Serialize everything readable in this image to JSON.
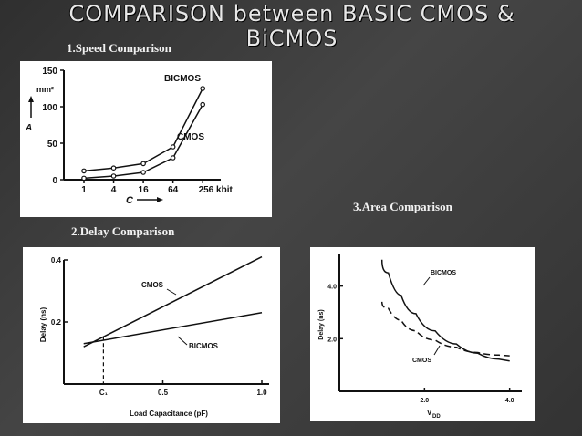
{
  "slide": {
    "title": "COMPARISON between BASIC CMOS & BiCMOS",
    "captions": {
      "speed": "1.Speed Comparison",
      "delay": "2.Delay Comparison",
      "area": "3.Area Comparison"
    }
  },
  "chart_data": [
    {
      "type": "line",
      "name": "speed",
      "ylabel": "mm² A",
      "xlabel": "C",
      "x_tick_labels": [
        "1",
        "4",
        "16",
        "64",
        "256 kbit"
      ],
      "y_ticks": [
        0,
        50,
        100,
        150
      ],
      "y_tick_labels": [
        "0",
        "50",
        "100",
        "150"
      ],
      "unit_label": "mm²",
      "ylim": [
        0,
        150
      ],
      "series": [
        {
          "name": "BICMOS",
          "values": [
            12,
            16,
            22,
            45,
            125
          ]
        },
        {
          "name": "CMOS",
          "values": [
            2,
            5,
            10,
            30,
            103
          ]
        }
      ]
    },
    {
      "type": "line",
      "name": "delay",
      "xlabel": "Load Capacitance (pF)",
      "ylabel": "Delay (ns)",
      "x_ticks": [
        0.5,
        1.0
      ],
      "x_tick_labels": [
        "0.5",
        "1.0"
      ],
      "y_ticks": [
        0.2,
        0.4
      ],
      "y_tick_labels": [
        "0.2",
        "0.4"
      ],
      "xlim": [
        0,
        1.0
      ],
      "ylim": [
        0,
        0.4
      ],
      "marker_label": "C₁",
      "marker_x": 0.2,
      "series": [
        {
          "name": "CMOS",
          "x": [
            0.1,
            1.0
          ],
          "y": [
            0.12,
            0.41
          ]
        },
        {
          "name": "BICMOS",
          "x": [
            0.1,
            1.0
          ],
          "y": [
            0.13,
            0.23
          ]
        }
      ]
    },
    {
      "type": "line",
      "name": "area",
      "xlabel": "V",
      "xlabel_sub": "DD",
      "ylabel": "Delay (ns)",
      "x_ticks": [
        2.0,
        4.0
      ],
      "x_tick_labels": [
        "2.0",
        "4.0"
      ],
      "y_ticks": [
        2.0,
        4.0
      ],
      "y_tick_labels": [
        "2.0",
        "4.0"
      ],
      "xlim": [
        0,
        4.2
      ],
      "ylim": [
        0,
        5.2
      ],
      "series": [
        {
          "name": "BICMOS",
          "x": [
            1.0,
            1.3,
            1.6,
            2.0,
            2.5,
            3.0,
            3.5,
            4.0
          ],
          "y": [
            5.0,
            4.0,
            3.3,
            2.6,
            2.0,
            1.6,
            1.3,
            1.15
          ]
        },
        {
          "name": "CMOS",
          "x": [
            1.0,
            1.3,
            1.6,
            2.0,
            2.5,
            3.0,
            3.5,
            4.0
          ],
          "y": [
            3.4,
            2.9,
            2.5,
            2.1,
            1.8,
            1.55,
            1.4,
            1.35
          ]
        }
      ]
    }
  ]
}
